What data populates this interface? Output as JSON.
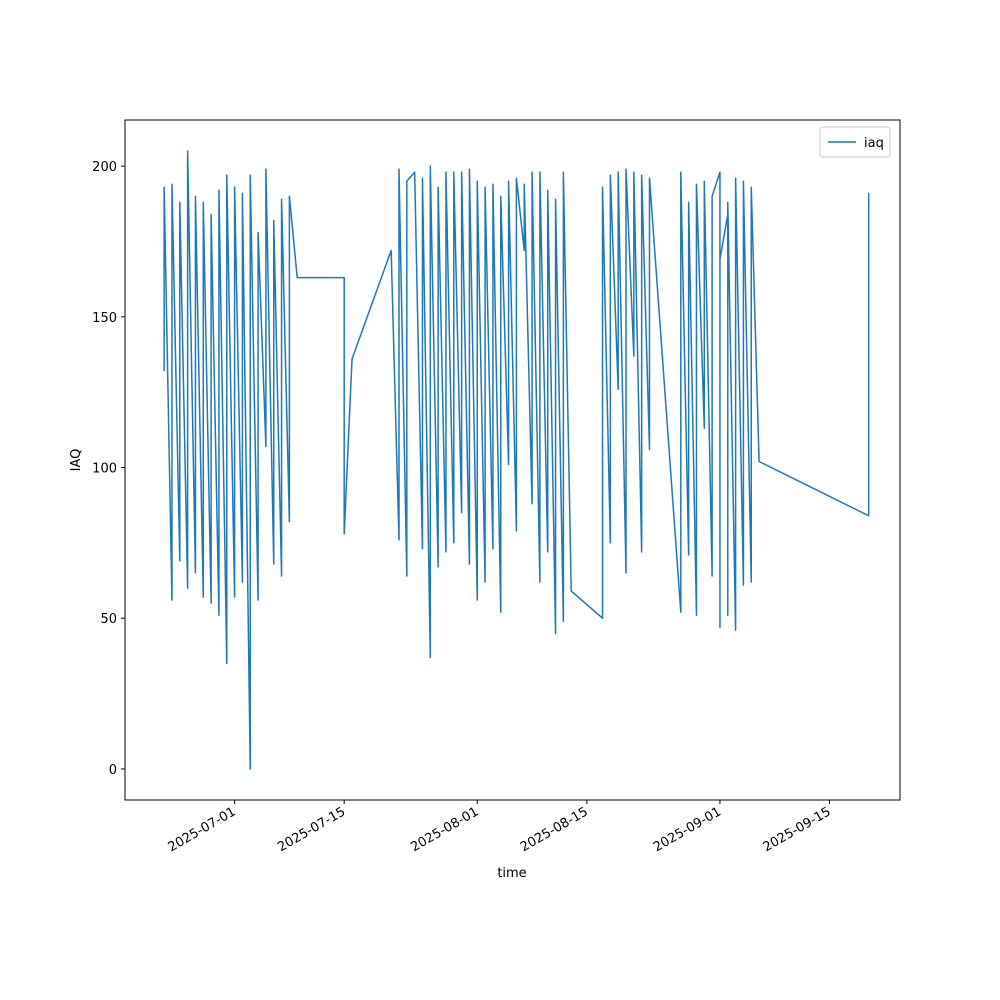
{
  "chart_data": {
    "type": "line",
    "xlabel": "time",
    "ylabel": "IAQ",
    "x": [
      "2025-06-22",
      "2025-06-22",
      "2025-06-23",
      "2025-06-23",
      "2025-06-24",
      "2025-06-24",
      "2025-06-25",
      "2025-06-25",
      "2025-06-26",
      "2025-06-26",
      "2025-06-27",
      "2025-06-27",
      "2025-06-28",
      "2025-06-28",
      "2025-06-29",
      "2025-06-29",
      "2025-06-30",
      "2025-06-30",
      "2025-07-01",
      "2025-07-01",
      "2025-07-02",
      "2025-07-02",
      "2025-07-03",
      "2025-07-03",
      "2025-07-04",
      "2025-07-04",
      "2025-07-05",
      "2025-07-05",
      "2025-07-06",
      "2025-07-06",
      "2025-07-07",
      "2025-07-07",
      "2025-07-08",
      "2025-07-08",
      "2025-07-09",
      "2025-07-15",
      "2025-07-15",
      "2025-07-16",
      "2025-07-21",
      "2025-07-22",
      "2025-07-22",
      "2025-07-23",
      "2025-07-23",
      "2025-07-24",
      "2025-07-25",
      "2025-07-25",
      "2025-07-26",
      "2025-07-26",
      "2025-07-27",
      "2025-07-27",
      "2025-07-28",
      "2025-07-28",
      "2025-07-29",
      "2025-07-29",
      "2025-07-30",
      "2025-07-30",
      "2025-07-31",
      "2025-07-31",
      "2025-08-01",
      "2025-08-01",
      "2025-08-02",
      "2025-08-02",
      "2025-08-03",
      "2025-08-03",
      "2025-08-04",
      "2025-08-04",
      "2025-08-05",
      "2025-08-05",
      "2025-08-06",
      "2025-08-06",
      "2025-08-07",
      "2025-08-07",
      "2025-08-08",
      "2025-08-08",
      "2025-08-09",
      "2025-08-09",
      "2025-08-10",
      "2025-08-10",
      "2025-08-11",
      "2025-08-11",
      "2025-08-12",
      "2025-08-12",
      "2025-08-13",
      "2025-08-17",
      "2025-08-17",
      "2025-08-18",
      "2025-08-18",
      "2025-08-19",
      "2025-08-19",
      "2025-08-20",
      "2025-08-20",
      "2025-08-21",
      "2025-08-21",
      "2025-08-22",
      "2025-08-22",
      "2025-08-23",
      "2025-08-23",
      "2025-08-23",
      "2025-08-27",
      "2025-08-27",
      "2025-08-28",
      "2025-08-28",
      "2025-08-29",
      "2025-08-29",
      "2025-08-30",
      "2025-08-30",
      "2025-08-31",
      "2025-08-31",
      "2025-09-01",
      "2025-09-01",
      "2025-09-01",
      "2025-09-02",
      "2025-09-02",
      "2025-09-02",
      "2025-09-03",
      "2025-09-03",
      "2025-09-04",
      "2025-09-04",
      "2025-09-05",
      "2025-09-05",
      "2025-09-06",
      "2025-09-20",
      "2025-09-20",
      "2025-09-20"
    ],
    "series": [
      {
        "name": "iaq",
        "color": "#1f77b4",
        "values": [
          132,
          193,
          56,
          194,
          69,
          188,
          60,
          205,
          65,
          190,
          57,
          188,
          55,
          184,
          51,
          192,
          35,
          197,
          57,
          193,
          62,
          191,
          0,
          197,
          56,
          178,
          107,
          199,
          68,
          182,
          64,
          189,
          82,
          190,
          163,
          163,
          78,
          136,
          172,
          76,
          199,
          64,
          195,
          198,
          73,
          196,
          37,
          200,
          67,
          193,
          72,
          198,
          75,
          198,
          85,
          198,
          68,
          199,
          56,
          195,
          62,
          193,
          73,
          194,
          52,
          190,
          101,
          195,
          79,
          196,
          172,
          194,
          88,
          198,
          62,
          198,
          72,
          192,
          45,
          189,
          49,
          198,
          59,
          50,
          193,
          75,
          197,
          126,
          198,
          65,
          199,
          137,
          198,
          72,
          197,
          106,
          189,
          196,
          52,
          198,
          71,
          188,
          51,
          194,
          113,
          195,
          64,
          190,
          198,
          47,
          169,
          184,
          51,
          188,
          46,
          196,
          61,
          195,
          62,
          193,
          102,
          84,
          191,
          180
        ]
      }
    ],
    "xlim": [
      "2025-06-17",
      "2025-09-24"
    ],
    "xticks": [
      "2025-07-01",
      "2025-07-15",
      "2025-08-01",
      "2025-08-15",
      "2025-09-01",
      "2025-09-15"
    ],
    "ylim": [
      -10.3,
      215.3
    ],
    "yticks": [
      0,
      50,
      100,
      150,
      200
    ],
    "legend": "upper right"
  }
}
